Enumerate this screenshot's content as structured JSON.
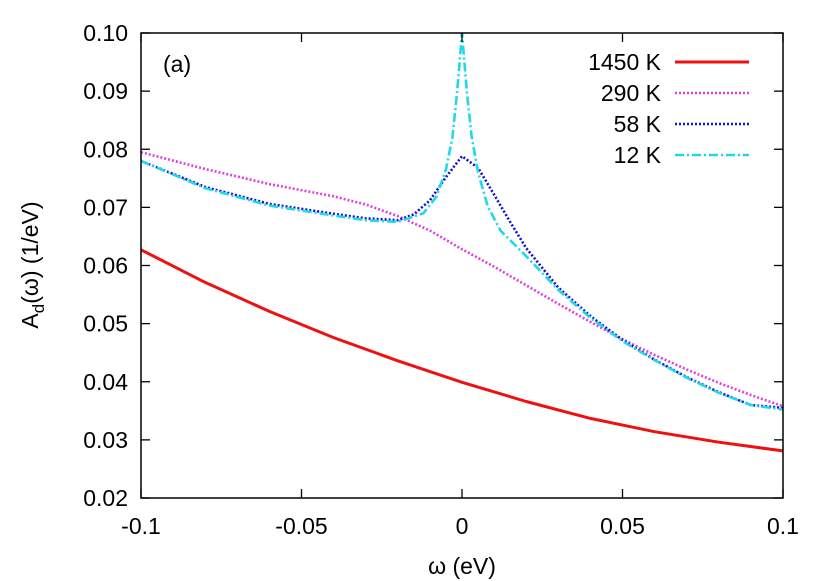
{
  "chart_data": {
    "type": "line",
    "panel_label": "(a)",
    "xlabel": "ω (eV)",
    "ylabel": {
      "prefix": "A",
      "sub": "d",
      "suffix": "(ω) (1/eV)"
    },
    "xlim": [
      -0.1,
      0.1
    ],
    "ylim": [
      0.02,
      0.1
    ],
    "x_ticks": [
      {
        "v": -0.1,
        "label": "-0.1"
      },
      {
        "v": -0.05,
        "label": "-0.05"
      },
      {
        "v": 0,
        "label": "0"
      },
      {
        "v": 0.05,
        "label": "0.05"
      },
      {
        "v": 0.1,
        "label": "0.1"
      }
    ],
    "y_ticks": [
      {
        "v": 0.02,
        "label": "0.02"
      },
      {
        "v": 0.03,
        "label": "0.03"
      },
      {
        "v": 0.04,
        "label": "0.04"
      },
      {
        "v": 0.05,
        "label": "0.05"
      },
      {
        "v": 0.06,
        "label": "0.06"
      },
      {
        "v": 0.07,
        "label": "0.07"
      },
      {
        "v": 0.08,
        "label": "0.08"
      },
      {
        "v": 0.09,
        "label": "0.09"
      },
      {
        "v": 0.1,
        "label": "0.10"
      }
    ],
    "grid": false,
    "legend_position": "top-right",
    "series": [
      {
        "name": "1450 K",
        "color": "#ee1111",
        "style": "solid",
        "x": [
          -0.1,
          -0.08,
          -0.06,
          -0.04,
          -0.02,
          0,
          0.02,
          0.04,
          0.06,
          0.08,
          0.1
        ],
        "y": [
          0.0627,
          0.0571,
          0.0521,
          0.0476,
          0.0436,
          0.0399,
          0.0366,
          0.0337,
          0.0314,
          0.0296,
          0.0281
        ]
      },
      {
        "name": "290 K",
        "color": "#e040e0",
        "style": "dotted",
        "x": [
          -0.1,
          -0.08,
          -0.06,
          -0.04,
          -0.03,
          -0.02,
          -0.01,
          0,
          0.01,
          0.02,
          0.03,
          0.04,
          0.05,
          0.06,
          0.07,
          0.08,
          0.09,
          0.1
        ],
        "y": [
          0.0795,
          0.0766,
          0.074,
          0.0719,
          0.0705,
          0.0685,
          0.066,
          0.0628,
          0.0598,
          0.0566,
          0.0534,
          0.0503,
          0.0473,
          0.0446,
          0.0421,
          0.0398,
          0.0377,
          0.0358
        ]
      },
      {
        "name": "58 K",
        "color": "#1010d0",
        "style": "dotted",
        "x": [
          -0.1,
          -0.08,
          -0.06,
          -0.04,
          -0.03,
          -0.02,
          -0.015,
          -0.01,
          -0.005,
          0,
          0.005,
          0.01,
          0.015,
          0.02,
          0.03,
          0.04,
          0.05,
          0.06,
          0.07,
          0.08,
          0.09,
          0.1
        ],
        "y": [
          0.078,
          0.0735,
          0.0706,
          0.0689,
          0.0681,
          0.0678,
          0.0688,
          0.0712,
          0.0752,
          0.0788,
          0.0768,
          0.0722,
          0.0675,
          0.063,
          0.0562,
          0.0513,
          0.0472,
          0.0438,
          0.0408,
          0.0382,
          0.036,
          0.0355
        ]
      },
      {
        "name": "12 K",
        "color": "#20d8e8",
        "style": "dashdot",
        "x": [
          -0.1,
          -0.08,
          -0.06,
          -0.04,
          -0.03,
          -0.02,
          -0.012,
          -0.008,
          -0.005,
          -0.003,
          -0.0015,
          0,
          0.0015,
          0.003,
          0.005,
          0.008,
          0.012,
          0.02,
          0.03,
          0.04,
          0.05,
          0.06,
          0.07,
          0.08,
          0.09,
          0.1
        ],
        "y": [
          0.078,
          0.0733,
          0.0703,
          0.0686,
          0.0678,
          0.0675,
          0.069,
          0.0718,
          0.0765,
          0.082,
          0.09,
          0.1,
          0.09,
          0.0822,
          0.076,
          0.0702,
          0.066,
          0.0616,
          0.0558,
          0.051,
          0.047,
          0.0437,
          0.0407,
          0.0381,
          0.036,
          0.0352
        ]
      }
    ]
  }
}
